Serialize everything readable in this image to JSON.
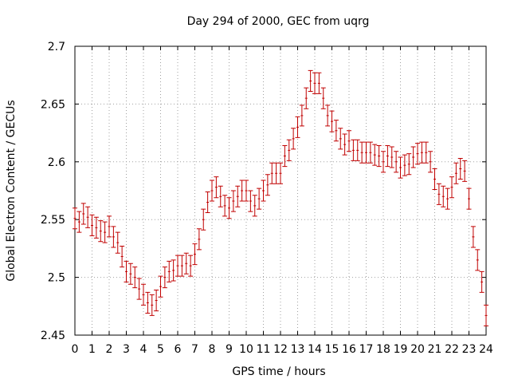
{
  "chart_data": {
    "type": "scatter",
    "title": "Day 294 of 2000, GEC from uqrg",
    "xlabel": "GPS time / hours",
    "ylabel": "Global Electron Content / GECUs",
    "xlim": [
      0,
      24
    ],
    "ylim": [
      2.45,
      2.7
    ],
    "x_ticks": [
      0,
      1,
      2,
      3,
      4,
      5,
      6,
      7,
      8,
      9,
      10,
      11,
      12,
      13,
      14,
      15,
      16,
      17,
      18,
      19,
      20,
      21,
      22,
      23,
      24
    ],
    "y_ticks": [
      2.45,
      2.5,
      2.55,
      2.6,
      2.65,
      2.7
    ],
    "y_tick_labels": [
      "2.45",
      "2.5",
      "2.55",
      "2.6",
      "2.65",
      "2.7"
    ],
    "grid": true,
    "error_bar_color": "#c00000",
    "error_half_width": 0.009,
    "series": [
      {
        "x": [
          0.0,
          0.25,
          0.5,
          0.75,
          1.0,
          1.25,
          1.5,
          1.75,
          2.0,
          2.25,
          2.5,
          2.75,
          3.0,
          3.25,
          3.5,
          3.75,
          4.0,
          4.25,
          4.5,
          4.75,
          5.0,
          5.25,
          5.5,
          5.75,
          6.0,
          6.25,
          6.5,
          6.75,
          7.0,
          7.25,
          7.5,
          7.75,
          8.0,
          8.25,
          8.5,
          8.75,
          9.0,
          9.25,
          9.5,
          9.75,
          10.0,
          10.25,
          10.5,
          10.75,
          11.0,
          11.25,
          11.5,
          11.75,
          12.0,
          12.25,
          12.5,
          12.75,
          13.0,
          13.25,
          13.5,
          13.75,
          14.0,
          14.25,
          14.5,
          14.75,
          15.0,
          15.25,
          15.5,
          15.75,
          16.0,
          16.25,
          16.5,
          16.75,
          17.0,
          17.25,
          17.5,
          17.75,
          18.0,
          18.25,
          18.5,
          18.75,
          19.0,
          19.25,
          19.5,
          19.75,
          20.0,
          20.25,
          20.5,
          20.75,
          21.0,
          21.25,
          21.5,
          21.75,
          22.0,
          22.25,
          22.5,
          22.75,
          23.0,
          23.25,
          23.5,
          23.75,
          24.0
        ],
        "y": [
          2.551,
          2.548,
          2.555,
          2.552,
          2.545,
          2.543,
          2.54,
          2.539,
          2.544,
          2.535,
          2.53,
          2.518,
          2.505,
          2.503,
          2.5,
          2.49,
          2.485,
          2.478,
          2.476,
          2.48,
          2.492,
          2.5,
          2.505,
          2.506,
          2.51,
          2.51,
          2.512,
          2.51,
          2.52,
          2.533,
          2.55,
          2.565,
          2.575,
          2.578,
          2.57,
          2.562,
          2.56,
          2.566,
          2.57,
          2.575,
          2.575,
          2.566,
          2.562,
          2.568,
          2.575,
          2.58,
          2.59,
          2.59,
          2.59,
          2.605,
          2.61,
          2.62,
          2.63,
          2.64,
          2.655,
          2.67,
          2.668,
          2.668,
          2.655,
          2.64,
          2.635,
          2.627,
          2.62,
          2.615,
          2.618,
          2.61,
          2.61,
          2.608,
          2.608,
          2.608,
          2.606,
          2.605,
          2.6,
          2.605,
          2.604,
          2.6,
          2.595,
          2.597,
          2.598,
          2.604,
          2.607,
          2.608,
          2.608,
          2.6,
          2.585,
          2.572,
          2.57,
          2.568,
          2.578,
          2.59,
          2.594,
          2.592,
          2.568,
          2.535,
          2.515,
          2.496,
          2.467
        ]
      }
    ]
  }
}
